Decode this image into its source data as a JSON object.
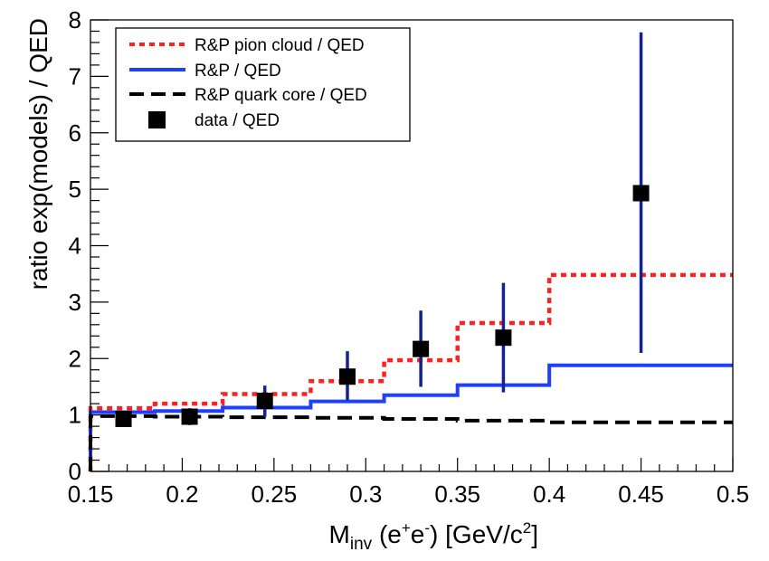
{
  "chart_data": {
    "type": "line",
    "xlabel": {
      "main": "M",
      "sub": "inv",
      "pre": " (e",
      "sup1": "+",
      "mid": "e",
      "sup2": "-",
      "post": ") [GeV/c",
      "sup3": "2",
      "end": "]"
    },
    "ylabel": "ratio  exp(models) / QED",
    "xlim": [
      0.15,
      0.5
    ],
    "ylim": [
      0,
      8
    ],
    "xticks": [
      "0.15",
      "0.2",
      "0.25",
      "0.3",
      "0.35",
      "0.4",
      "0.45",
      "0.5"
    ],
    "xtick_values": [
      0.15,
      0.2,
      0.25,
      0.3,
      0.35,
      0.4,
      0.45,
      0.5
    ],
    "yticks": [
      "0",
      "1",
      "2",
      "3",
      "4",
      "5",
      "6",
      "7",
      "8"
    ],
    "ytick_values": [
      0,
      1,
      2,
      3,
      4,
      5,
      6,
      7,
      8
    ],
    "legend_position": "top-left",
    "series": [
      {
        "name": "R&P pion cloud / QED",
        "style": "dotted",
        "color": "#ff2020",
        "bin_edges": [
          0.15,
          0.185,
          0.222,
          0.27,
          0.31,
          0.35,
          0.4,
          0.5
        ],
        "values": [
          1.12,
          1.2,
          1.37,
          1.6,
          1.97,
          2.63,
          3.48
        ]
      },
      {
        "name": "R&P / QED",
        "style": "solid",
        "color": "#1f3fff",
        "bin_edges": [
          0.15,
          0.185,
          0.222,
          0.27,
          0.31,
          0.35,
          0.4,
          0.5
        ],
        "values": [
          1.05,
          1.07,
          1.13,
          1.24,
          1.35,
          1.53,
          1.88
        ]
      },
      {
        "name": "R&P quark core / QED",
        "style": "dashed",
        "color": "#000000",
        "bin_edges": [
          0.15,
          0.185,
          0.222,
          0.27,
          0.31,
          0.35,
          0.4,
          0.5
        ],
        "values": [
          0.98,
          0.97,
          0.96,
          0.95,
          0.93,
          0.9,
          0.87
        ]
      },
      {
        "name": "data  / QED",
        "style": "markers",
        "color": "#000000",
        "errorbar_color": "#14238c",
        "points": [
          {
            "x": 0.168,
            "y": 0.93,
            "err_low": 0.07,
            "err_high": 0.07
          },
          {
            "x": 0.204,
            "y": 0.97,
            "err_low": 0.15,
            "err_high": 0.15
          },
          {
            "x": 0.245,
            "y": 1.25,
            "err_low": 0.28,
            "err_high": 0.27
          },
          {
            "x": 0.29,
            "y": 1.68,
            "err_low": 0.42,
            "err_high": 0.45
          },
          {
            "x": 0.33,
            "y": 2.17,
            "err_low": 0.67,
            "err_high": 0.68
          },
          {
            "x": 0.375,
            "y": 2.37,
            "err_low": 0.97,
            "err_high": 0.97
          },
          {
            "x": 0.45,
            "y": 4.93,
            "err_low": 2.83,
            "err_high": 2.85
          }
        ]
      }
    ]
  }
}
